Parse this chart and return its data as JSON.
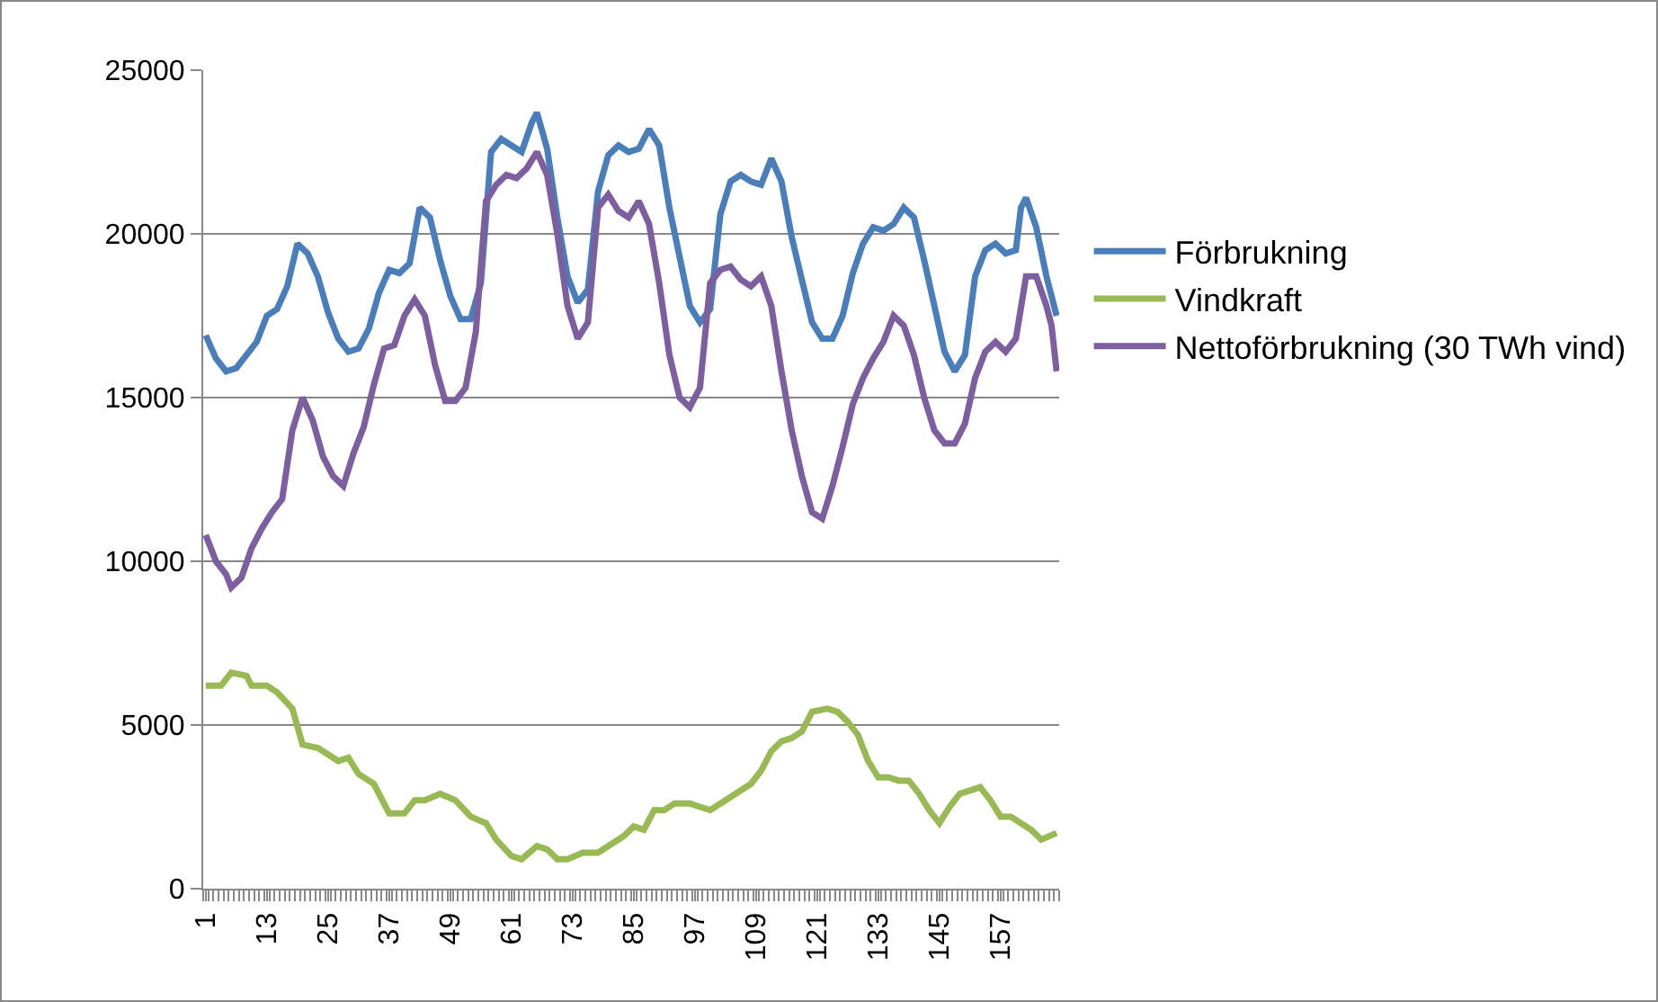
{
  "chart_data": {
    "type": "line",
    "xlim": [
      0.5,
      168.5
    ],
    "xticks": [
      1,
      13,
      25,
      37,
      49,
      61,
      73,
      85,
      97,
      109,
      121,
      133,
      145,
      157
    ],
    "ylim": [
      0,
      25000
    ],
    "yticks": [
      0,
      5000,
      10000,
      15000,
      20000,
      25000
    ],
    "grid": "y",
    "legend": "right",
    "marker": "none",
    "line_style": "solid",
    "series": [
      {
        "name": "Förbrukning",
        "color": "#4a7ebb",
        "x": [
          1,
          3,
          5,
          7,
          9,
          11,
          13,
          15,
          17,
          19,
          21,
          23,
          25,
          27,
          29,
          31,
          33,
          35,
          37,
          39,
          41,
          43,
          45,
          47,
          49,
          51,
          53,
          55,
          56,
          57,
          59,
          61,
          63,
          65,
          66,
          68,
          70,
          72,
          74,
          76,
          78,
          80,
          82,
          84,
          86,
          88,
          90,
          92,
          94,
          96,
          98,
          100,
          102,
          104,
          106,
          108,
          110,
          112,
          114,
          116,
          118,
          120,
          122,
          124,
          126,
          128,
          130,
          132,
          134,
          136,
          138,
          140,
          142,
          144,
          146,
          148,
          150,
          152,
          154,
          156,
          158,
          160,
          161,
          162,
          164,
          166,
          168
        ],
        "values": [
          16900,
          16200,
          15800,
          15900,
          16300,
          16700,
          17500,
          17700,
          18400,
          19700,
          19400,
          18700,
          17600,
          16800,
          16400,
          16500,
          17100,
          18200,
          18900,
          18800,
          19100,
          20800,
          20500,
          19200,
          18100,
          17400,
          17400,
          18500,
          20500,
          22500,
          22900,
          22700,
          22500,
          23400,
          23700,
          22600,
          20500,
          18700,
          17900,
          18300,
          21300,
          22400,
          22700,
          22500,
          22600,
          23200,
          22700,
          20800,
          19300,
          17800,
          17300,
          17700,
          20600,
          21600,
          21800,
          21600,
          21500,
          22300,
          21600,
          19900,
          18600,
          17300,
          16800,
          16800,
          17500,
          18800,
          19700,
          20200,
          20100,
          20300,
          20800,
          20500,
          19200,
          17800,
          16400,
          15800,
          16300,
          18700,
          19500,
          19700,
          19400,
          19500,
          20800,
          21100,
          20200,
          18700,
          17500
        ]
      },
      {
        "name": "Vindkraft",
        "color": "#98b954",
        "x": [
          1,
          4,
          6,
          9,
          10,
          13,
          15,
          18,
          20,
          23,
          25,
          27,
          29,
          31,
          34,
          37,
          40,
          42,
          44,
          47,
          50,
          53,
          56,
          58,
          61,
          63,
          66,
          68,
          70,
          72,
          75,
          78,
          81,
          83,
          85,
          87,
          89,
          91,
          93,
          96,
          98,
          100,
          103,
          106,
          108,
          110,
          112,
          114,
          116,
          118,
          120,
          123,
          125,
          127,
          129,
          131,
          133,
          135,
          137,
          139,
          141,
          143,
          145,
          147,
          149,
          151,
          153,
          155,
          157,
          159,
          161,
          163,
          165,
          168
        ],
        "values": [
          6200,
          6200,
          6600,
          6500,
          6200,
          6200,
          6000,
          5500,
          4400,
          4300,
          4100,
          3900,
          4000,
          3500,
          3200,
          2300,
          2300,
          2700,
          2700,
          2900,
          2700,
          2200,
          2000,
          1500,
          1000,
          900,
          1300,
          1200,
          900,
          900,
          1100,
          1100,
          1400,
          1600,
          1900,
          1800,
          2400,
          2400,
          2600,
          2600,
          2500,
          2400,
          2700,
          3000,
          3200,
          3600,
          4200,
          4500,
          4600,
          4800,
          5400,
          5500,
          5400,
          5100,
          4700,
          3900,
          3400,
          3400,
          3300,
          3300,
          2900,
          2400,
          2000,
          2500,
          2900,
          3000,
          3100,
          2700,
          2200,
          2200,
          2000,
          1800,
          1500,
          1700
        ]
      },
      {
        "name": "Nettoförbrukning (30 TWh vind)",
        "color": "#7d5fa0",
        "x": [
          1,
          3,
          5,
          6,
          8,
          10,
          12,
          14,
          16,
          18,
          20,
          22,
          24,
          26,
          28,
          30,
          32,
          34,
          36,
          38,
          40,
          42,
          44,
          46,
          48,
          50,
          52,
          54,
          55,
          56,
          58,
          60,
          62,
          64,
          66,
          68,
          70,
          72,
          74,
          76,
          78,
          80,
          82,
          84,
          86,
          88,
          90,
          92,
          94,
          96,
          98,
          100,
          102,
          104,
          106,
          108,
          110,
          112,
          114,
          116,
          118,
          120,
          122,
          124,
          126,
          128,
          130,
          132,
          134,
          136,
          138,
          140,
          142,
          144,
          146,
          148,
          150,
          152,
          154,
          156,
          158,
          160,
          162,
          164,
          166,
          167,
          168
        ],
        "values": [
          10800,
          10000,
          9600,
          9200,
          9500,
          10400,
          11000,
          11500,
          11900,
          14000,
          15000,
          14300,
          13200,
          12600,
          12300,
          13300,
          14100,
          15400,
          16500,
          16600,
          17500,
          18000,
          17500,
          16000,
          14900,
          14900,
          15300,
          17000,
          19000,
          21000,
          21500,
          21800,
          21700,
          22000,
          22500,
          21800,
          20000,
          17800,
          16800,
          17300,
          20800,
          21200,
          20700,
          20500,
          21000,
          20300,
          18500,
          16300,
          15000,
          14700,
          15300,
          18500,
          18900,
          19000,
          18600,
          18400,
          18700,
          17800,
          15800,
          14000,
          12600,
          11500,
          11300,
          12300,
          13500,
          14800,
          15600,
          16200,
          16700,
          17500,
          17200,
          16300,
          15000,
          14000,
          13600,
          13600,
          14200,
          15600,
          16400,
          16700,
          16400,
          16800,
          18700,
          18700,
          17800,
          17200,
          15800
        ]
      }
    ]
  }
}
